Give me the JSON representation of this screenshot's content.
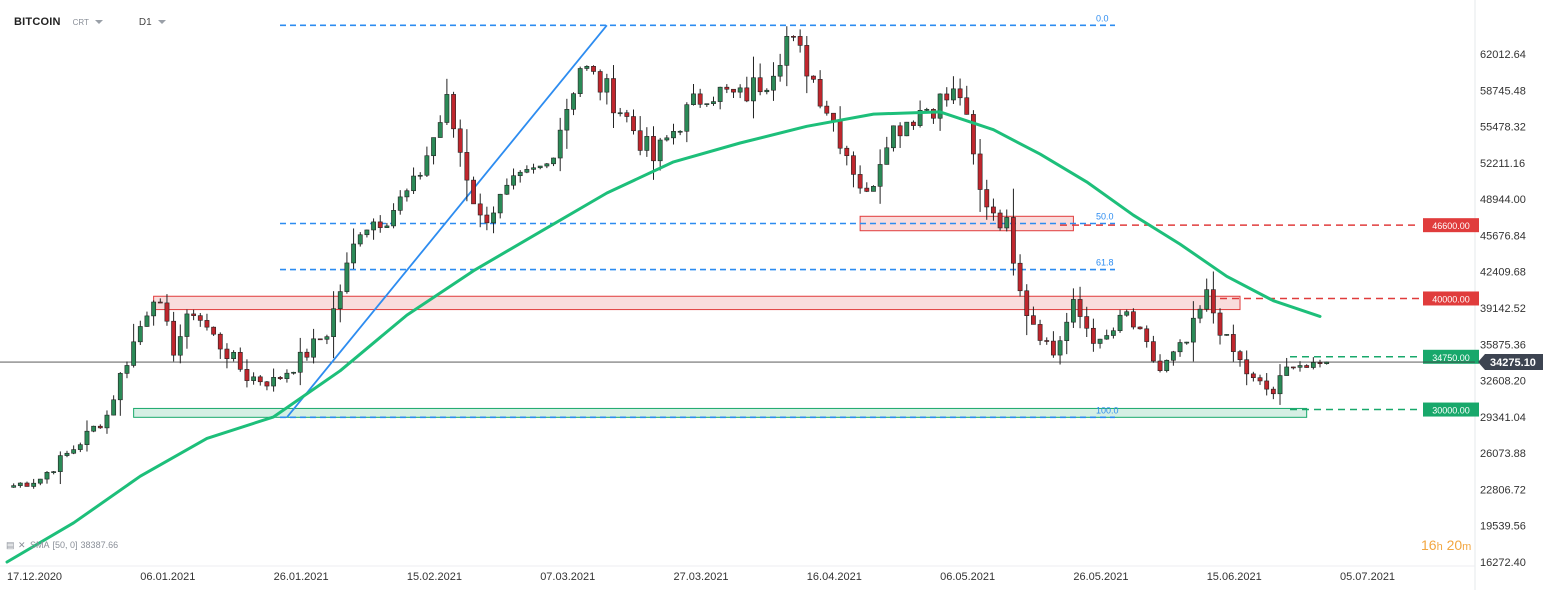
{
  "header": {
    "symbol": "BITCOIN",
    "mode": "CRT",
    "timeframe": "D1"
  },
  "indicator": {
    "label": "SMA",
    "params": "[50, 0]",
    "value": "38387.66"
  },
  "timer": {
    "hours": "16",
    "h_unit": "h",
    "minutes": "20",
    "m_unit": "m"
  },
  "colors": {
    "bull": "#2b8a57",
    "bear": "#c0262d",
    "sma": "#1dbf7a",
    "fib": "#2d8cf0",
    "trend": "#2d8cf0",
    "resistance": "#e03c3c",
    "support": "#18a86b",
    "price_label": "#3d4451"
  },
  "chart_data": {
    "type": "candlestick",
    "instrument": "BITCOIN",
    "timeframe": "D1",
    "y_axis": {
      "range": [
        15000,
        65000
      ],
      "ticks": [
        "62012.64",
        "58745.48",
        "55478.32",
        "52211.16",
        "48944.00",
        "45676.84",
        "42409.68",
        "39142.52",
        "35875.36",
        "32608.20",
        "29341.04",
        "26073.88",
        "22806.72",
        "19539.56",
        "16272.40"
      ]
    },
    "x_axis": {
      "range": [
        "2020-12-17",
        "2021-07-12"
      ],
      "ticks": [
        {
          "date": "2020-12-17",
          "label": "17.12.2020"
        },
        {
          "date": "2021-01-06",
          "label": "06.01.2021"
        },
        {
          "date": "2021-01-26",
          "label": "26.01.2021"
        },
        {
          "date": "2021-02-15",
          "label": "15.02.2021"
        },
        {
          "date": "2021-03-07",
          "label": "07.03.2021"
        },
        {
          "date": "2021-03-27",
          "label": "27.03.2021"
        },
        {
          "date": "2021-04-16",
          "label": "16.04.2021"
        },
        {
          "date": "2021-05-06",
          "label": "06.05.2021"
        },
        {
          "date": "2021-05-26",
          "label": "26.05.2021"
        },
        {
          "date": "2021-06-15",
          "label": "15.06.2021"
        },
        {
          "date": "2021-07-05",
          "label": "05.07.2021"
        }
      ]
    },
    "close_anchors": [
      [
        "2020-12-17",
        23000
      ],
      [
        "2020-12-22",
        23800
      ],
      [
        "2020-12-27",
        26500
      ],
      [
        "2021-01-01",
        29500
      ],
      [
        "2021-01-03",
        33000
      ],
      [
        "2021-01-08",
        40500
      ],
      [
        "2021-01-11",
        35500
      ],
      [
        "2021-01-14",
        39000
      ],
      [
        "2021-01-17",
        36500
      ],
      [
        "2021-01-22",
        33000
      ],
      [
        "2021-01-26",
        32500
      ],
      [
        "2021-01-30",
        34500
      ],
      [
        "2021-02-03",
        37000
      ],
      [
        "2021-02-08",
        46500
      ],
      [
        "2021-02-12",
        47500
      ],
      [
        "2021-02-16",
        50000
      ],
      [
        "2021-02-21",
        57500
      ],
      [
        "2021-02-26",
        47000
      ],
      [
        "2021-03-03",
        50000
      ],
      [
        "2021-03-08",
        52000
      ],
      [
        "2021-03-13",
        61000
      ],
      [
        "2021-03-18",
        58000
      ],
      [
        "2021-03-24",
        52500
      ],
      [
        "2021-03-28",
        56000
      ],
      [
        "2021-04-01",
        58800
      ],
      [
        "2021-04-06",
        58000
      ],
      [
        "2021-04-10",
        60000
      ],
      [
        "2021-04-13",
        63500
      ],
      [
        "2021-04-16",
        61000
      ],
      [
        "2021-04-20",
        56000
      ],
      [
        "2021-04-25",
        49000
      ],
      [
        "2021-04-28",
        54800
      ],
      [
        "2021-05-03",
        57000
      ],
      [
        "2021-05-09",
        58500
      ],
      [
        "2021-05-12",
        49500
      ],
      [
        "2021-05-16",
        46500
      ],
      [
        "2021-05-19",
        39000
      ],
      [
        "2021-05-23",
        35000
      ],
      [
        "2021-05-26",
        39200
      ],
      [
        "2021-05-30",
        35700
      ],
      [
        "2021-06-03",
        38500
      ],
      [
        "2021-06-08",
        33500
      ],
      [
        "2021-06-12",
        36000
      ],
      [
        "2021-06-15",
        40200
      ],
      [
        "2021-06-18",
        36000
      ],
      [
        "2021-06-22",
        32500
      ],
      [
        "2021-06-25",
        31500
      ],
      [
        "2021-06-28",
        34500
      ],
      [
        "2021-07-01",
        33500
      ],
      [
        "2021-07-03",
        34275
      ]
    ],
    "sma_50": [
      [
        "2020-12-17",
        16272
      ],
      [
        "2020-12-27",
        19800
      ],
      [
        "2021-01-06",
        24000
      ],
      [
        "2021-01-16",
        27400
      ],
      [
        "2021-01-26",
        29341
      ],
      [
        "2021-02-05",
        33500
      ],
      [
        "2021-02-15",
        38500
      ],
      [
        "2021-02-25",
        42500
      ],
      [
        "2021-03-07",
        46000
      ],
      [
        "2021-03-17",
        49500
      ],
      [
        "2021-03-27",
        52300
      ],
      [
        "2021-04-06",
        54000
      ],
      [
        "2021-04-16",
        55500
      ],
      [
        "2021-04-26",
        56600
      ],
      [
        "2021-05-06",
        56800
      ],
      [
        "2021-05-14",
        55200
      ],
      [
        "2021-05-21",
        53000
      ],
      [
        "2021-05-28",
        50500
      ],
      [
        "2021-06-04",
        47500
      ],
      [
        "2021-06-11",
        44900
      ],
      [
        "2021-06-18",
        42000
      ],
      [
        "2021-06-25",
        39800
      ],
      [
        "2021-07-02",
        38387
      ]
    ],
    "horizontal_levels": [
      {
        "price": 46600,
        "label": "46600.00",
        "style": "dashed",
        "color": "resistance"
      },
      {
        "price": 40000,
        "label": "40000.00",
        "style": "dashed",
        "color": "resistance"
      },
      {
        "price": 34750,
        "label": "34750.00",
        "style": "dashed",
        "color": "support"
      },
      {
        "price": 30000,
        "label": "30000.00",
        "style": "dashed",
        "color": "support"
      }
    ],
    "current_price": {
      "price": 34275.1,
      "label": "34275.10"
    },
    "fibonacci": [
      {
        "level": "0.0",
        "price": 64600
      },
      {
        "level": "50.0",
        "price": 46750
      },
      {
        "level": "61.8",
        "price": 42600
      },
      {
        "level": "100.0",
        "price": 29300
      }
    ],
    "zones": [
      {
        "name": "resistance-zone-40000",
        "from": "2021-01-08",
        "to": "2021-06-20",
        "low": 39000,
        "high": 40200,
        "color": "resistance"
      },
      {
        "name": "zone-46600",
        "from": "2021-04-24",
        "to": "2021-05-26",
        "low": 46100,
        "high": 47400,
        "color": "resistance"
      },
      {
        "name": "support-zone-30000",
        "from": "2021-01-05",
        "to": "2021-06-30",
        "low": 29300,
        "high": 30100,
        "color": "support"
      }
    ],
    "trendline": {
      "from": [
        "2021-01-28",
        29300
      ],
      "to": [
        "2021-03-17",
        64600
      ]
    }
  }
}
